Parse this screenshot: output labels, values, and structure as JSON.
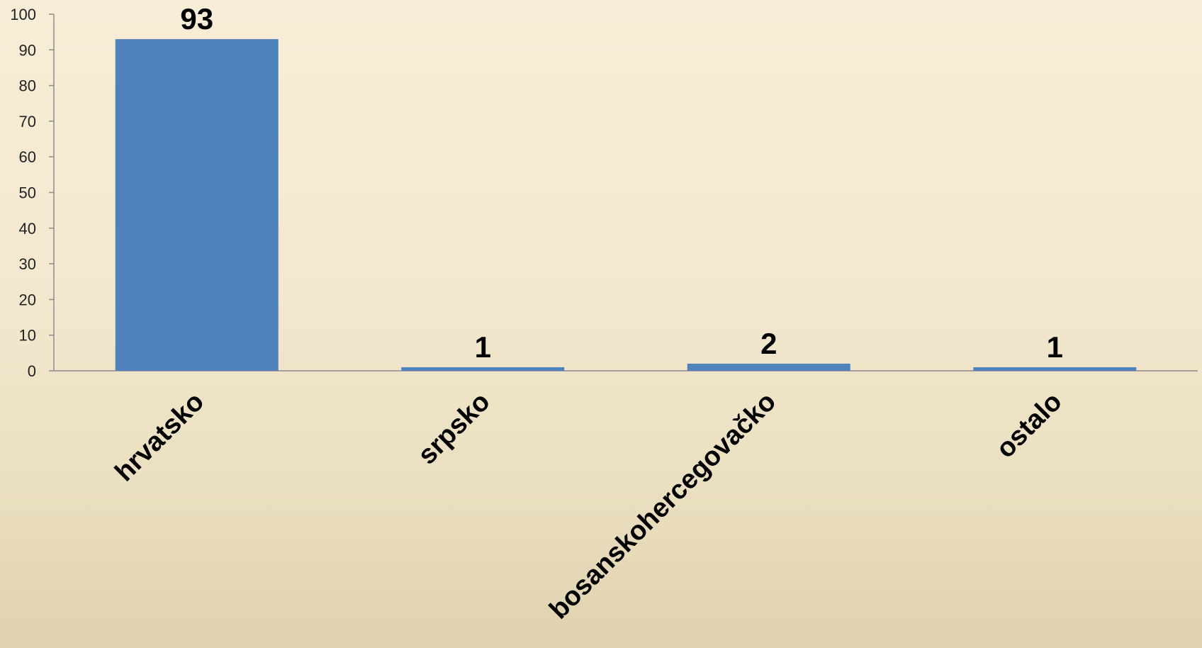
{
  "chart_data": {
    "type": "bar",
    "categories": [
      "hrvatsko",
      "srpsko",
      "bosanskohercegovačko",
      "ostalo"
    ],
    "values": [
      93,
      1,
      2,
      1
    ],
    "data_labels": [
      "93",
      "1",
      "2",
      "1"
    ],
    "title": "",
    "xlabel": "",
    "ylabel": "",
    "ylim": [
      0,
      100
    ],
    "y_ticks": [
      0,
      10,
      20,
      30,
      40,
      50,
      60,
      70,
      80,
      90,
      100
    ],
    "grid": false,
    "legend": "none",
    "colors": {
      "bar": "#4f81bd",
      "axis": "#8c8c8c"
    }
  }
}
